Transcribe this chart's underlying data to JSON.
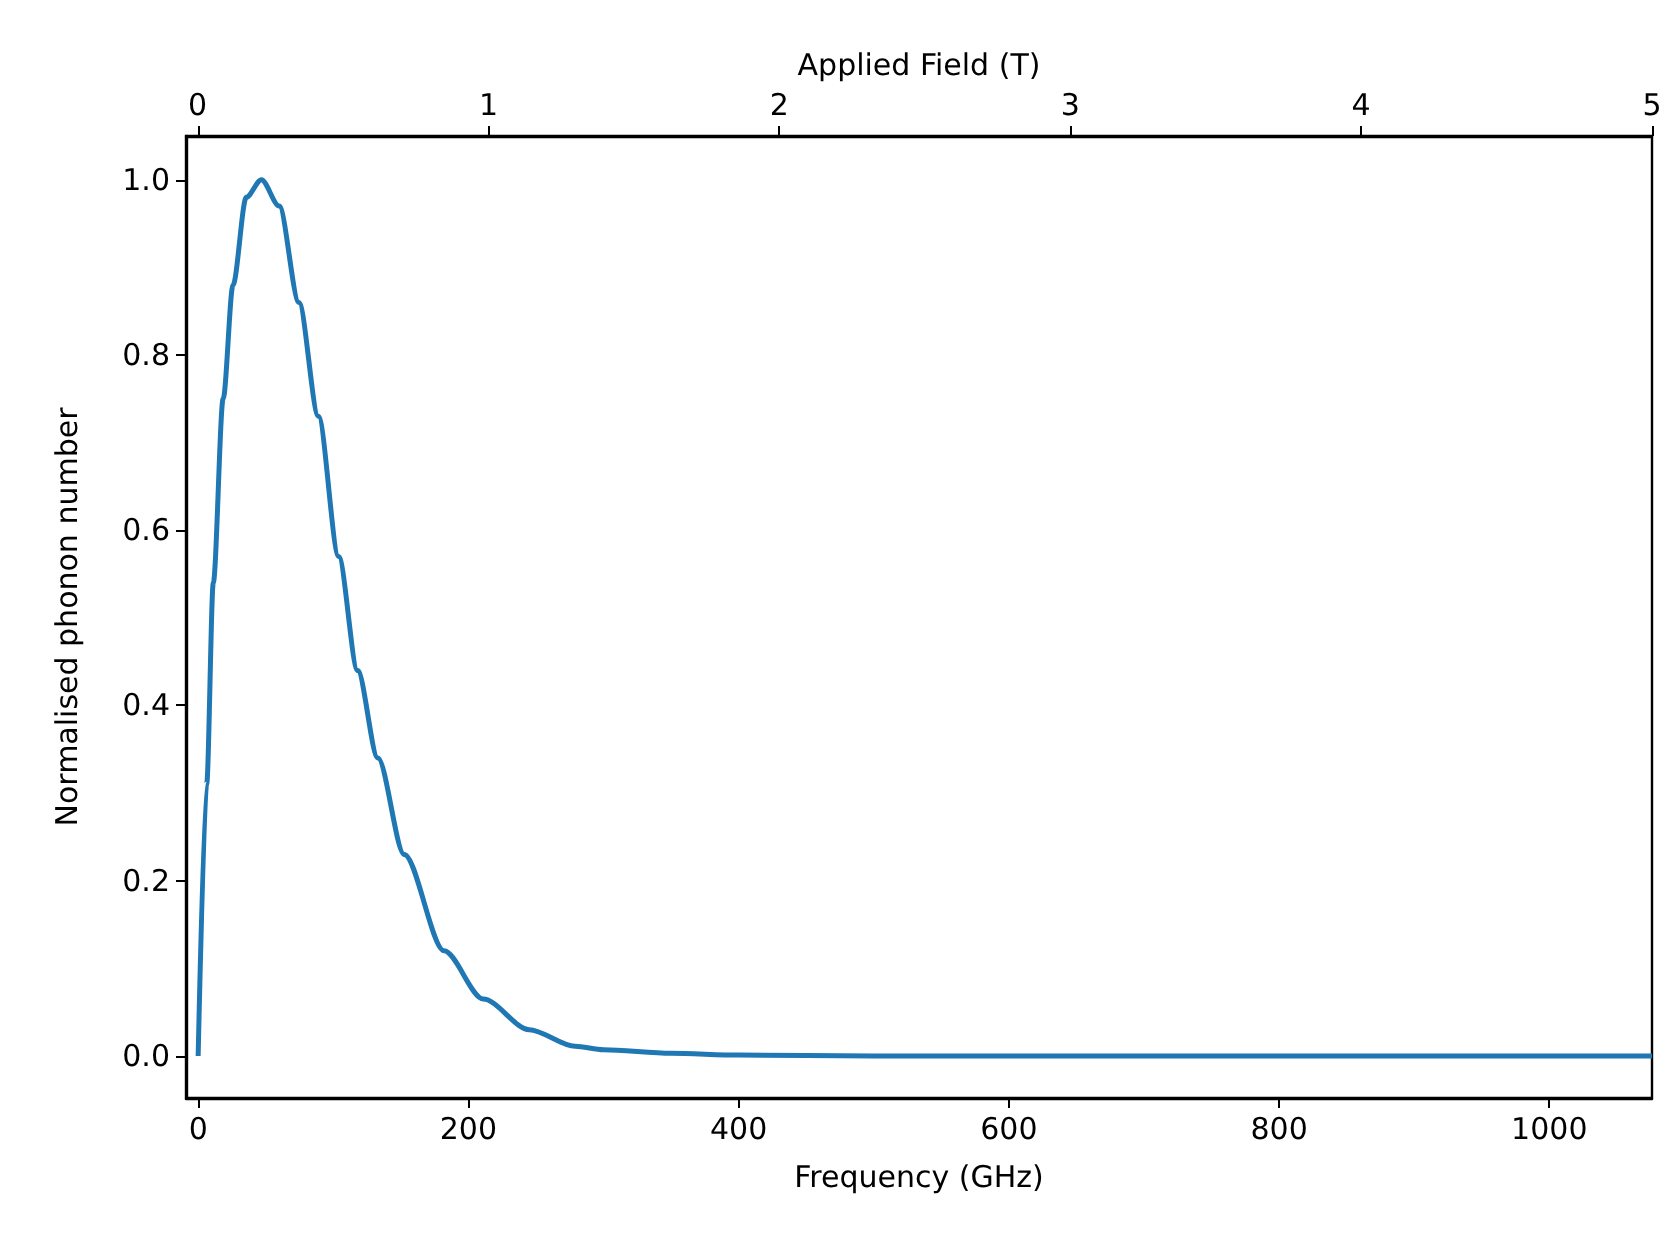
{
  "chart_data": {
    "type": "line",
    "xlabel": "Frequency (GHz)",
    "ylabel": "Normalised phonon number",
    "x2label": "Applied Field (T)",
    "series": [
      {
        "color": "#1f77b4",
        "x": [
          0,
          6.3,
          11.2,
          18.5,
          25.8,
          35.6,
          46.8,
          60,
          74.6,
          89,
          104,
          118,
          133,
          152.5,
          182,
          211,
          245,
          279,
          300,
          350,
          400,
          500,
          700,
          900,
          1076
        ],
        "values": [
          0,
          0.31,
          0.54,
          0.75,
          0.88,
          0.98,
          1.0,
          0.97,
          0.86,
          0.73,
          0.57,
          0.44,
          0.34,
          0.23,
          0.12,
          0.065,
          0.03,
          0.011,
          0.007,
          0.003,
          0.001,
          0,
          0,
          0,
          0
        ]
      }
    ],
    "xlim": [
      -9,
      1076
    ],
    "xticks": [
      0,
      200,
      400,
      600,
      800,
      1000
    ],
    "x2lim": [
      -0.04,
      5
    ],
    "x2ticks": [
      0,
      1,
      2,
      3,
      4,
      5
    ],
    "ylim": [
      -0.048,
      1.05
    ],
    "yticks": [
      {
        "value": 0,
        "label": "0.0"
      },
      {
        "value": 0.2,
        "label": "0.2"
      },
      {
        "value": 0.4,
        "label": "0.4"
      },
      {
        "value": 0.6,
        "label": "0.6"
      },
      {
        "value": 0.8,
        "label": "0.8"
      },
      {
        "value": 1,
        "label": "1.0"
      }
    ],
    "marker": "none",
    "grid": false
  }
}
